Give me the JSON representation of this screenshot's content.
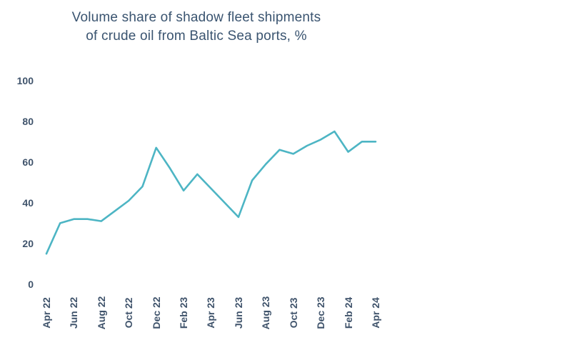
{
  "page": {
    "background": "#ffffff"
  },
  "chart": {
    "title_line1": "Volume share of shadow fleet shipments",
    "title_line2": "of crude oil from Baltic Sea ports, %",
    "text_color": "#3f536b",
    "line_color": "#4db5c4"
  },
  "chart_data": {
    "type": "line",
    "title": "Volume share of shadow fleet shipments of crude oil from Baltic Sea ports, %",
    "x": [
      "Apr 22",
      "May 22",
      "Jun 22",
      "Jul 22",
      "Aug 22",
      "Sep 22",
      "Oct 22",
      "Nov 22",
      "Dec 22",
      "Jan 23",
      "Feb 23",
      "Mar 23",
      "Apr 23",
      "May 23",
      "Jun 23",
      "Jul 23",
      "Aug 23",
      "Sep 23",
      "Oct 23",
      "Nov 23",
      "Dec 23",
      "Jan 24",
      "Feb 24",
      "Mar 24",
      "Apr 24"
    ],
    "values": [
      15,
      30,
      32,
      32,
      31,
      36,
      41,
      48,
      67,
      57,
      46,
      54,
      47,
      40,
      33,
      51,
      59,
      66,
      64,
      68,
      71,
      75,
      65,
      70,
      70
    ],
    "x_tick_labels": [
      "Apr 22",
      "Jun 22",
      "Aug 22",
      "Oct 22",
      "Dec 22",
      "Feb 23",
      "Apr 23",
      "Jun 23",
      "Aug 23",
      "Oct 23",
      "Dec 23",
      "Feb 24",
      "Apr 24"
    ],
    "y_ticks": [
      0,
      20,
      40,
      60,
      80,
      100
    ],
    "ylim": [
      0,
      100
    ],
    "grid": false,
    "legend_position": "none",
    "line_color": "#4db5c4"
  }
}
